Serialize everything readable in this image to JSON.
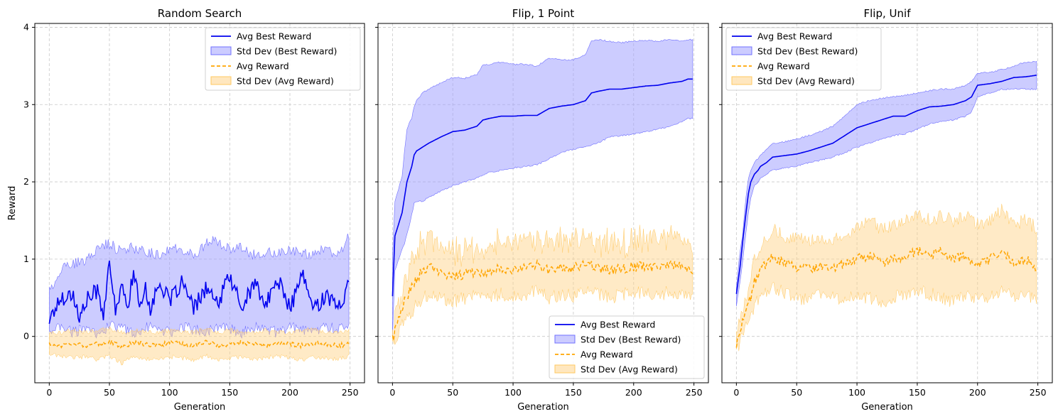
{
  "chart_data": [
    {
      "type": "line",
      "title": "Random Search",
      "xlabel": "Generation",
      "ylabel": "Reward",
      "xlim": [
        -12,
        262
      ],
      "ylim": [
        -0.6,
        4.05
      ],
      "xticks": [
        "0",
        "50",
        "100",
        "150",
        "200",
        "250"
      ],
      "yticks": [
        "0",
        "1",
        "2",
        "3",
        "4"
      ],
      "grid": true,
      "legend_position": "top-right",
      "colors": {
        "best": "#0000ee",
        "best_band": "#9999ff",
        "avg": "#ffa500",
        "avg_band": "#ffd080"
      },
      "series": [
        {
          "name": "Avg Best Reward",
          "style": "solid",
          "x": [
            0,
            10,
            20,
            25,
            30,
            40,
            45,
            50,
            55,
            60,
            65,
            70,
            75,
            80,
            85,
            90,
            100,
            110,
            120,
            130,
            140,
            150,
            160,
            170,
            180,
            190,
            200,
            210,
            220,
            230,
            240,
            249
          ],
          "y": [
            0.22,
            0.5,
            0.55,
            0.2,
            0.45,
            0.6,
            0.3,
            0.9,
            0.35,
            0.62,
            0.4,
            0.83,
            0.4,
            0.65,
            0.3,
            0.72,
            0.45,
            0.7,
            0.35,
            0.63,
            0.4,
            0.8,
            0.35,
            0.7,
            0.4,
            0.75,
            0.35,
            0.8,
            0.35,
            0.55,
            0.35,
            0.68
          ]
        },
        {
          "name": "Std Dev (Best Reward)",
          "kind": "band",
          "x": [
            0,
            10,
            20,
            30,
            40,
            50,
            60,
            70,
            80,
            90,
            100,
            110,
            120,
            130,
            140,
            150,
            160,
            170,
            180,
            190,
            200,
            210,
            220,
            230,
            240,
            249
          ],
          "lower": [
            0.05,
            0.15,
            0.05,
            0.1,
            0.0,
            0.15,
            0.1,
            0.05,
            0.12,
            0.1,
            0.05,
            0.12,
            0.1,
            0.05,
            0.12,
            0.1,
            0.05,
            0.12,
            0.1,
            0.05,
            0.12,
            0.1,
            0.05,
            0.12,
            0.1,
            0.1
          ],
          "upper": [
            0.6,
            0.88,
            0.95,
            0.95,
            1.15,
            1.2,
            1.1,
            1.15,
            1.1,
            1.05,
            1.15,
            1.1,
            1.05,
            1.2,
            1.25,
            1.1,
            1.15,
            1.05,
            1.1,
            1.05,
            1.15,
            1.05,
            1.1,
            1.1,
            1.05,
            1.28
          ]
        },
        {
          "name": "Avg Reward",
          "style": "dashed",
          "x": [
            0,
            10,
            20,
            30,
            40,
            50,
            60,
            70,
            80,
            90,
            100,
            110,
            120,
            130,
            140,
            150,
            160,
            170,
            180,
            190,
            200,
            210,
            220,
            230,
            240,
            249
          ],
          "y": [
            -0.1,
            -0.12,
            -0.08,
            -0.12,
            -0.1,
            -0.06,
            -0.14,
            -0.08,
            -0.1,
            -0.12,
            -0.08,
            -0.1,
            -0.12,
            -0.06,
            -0.12,
            -0.1,
            -0.08,
            -0.1,
            -0.12,
            -0.08,
            -0.1,
            -0.12,
            -0.08,
            -0.1,
            -0.12,
            -0.1
          ]
        },
        {
          "name": "Std Dev (Avg Reward)",
          "kind": "band",
          "x": [
            0,
            10,
            20,
            30,
            40,
            50,
            60,
            70,
            80,
            90,
            100,
            110,
            120,
            130,
            140,
            150,
            160,
            170,
            180,
            190,
            200,
            210,
            220,
            230,
            240,
            249
          ],
          "lower": [
            -0.22,
            -0.25,
            -0.28,
            -0.26,
            -0.3,
            -0.25,
            -0.35,
            -0.25,
            -0.3,
            -0.28,
            -0.26,
            -0.28,
            -0.3,
            -0.25,
            -0.3,
            -0.28,
            -0.26,
            -0.3,
            -0.28,
            -0.25,
            -0.28,
            -0.3,
            -0.26,
            -0.28,
            -0.3,
            -0.25
          ],
          "upper": [
            0.05,
            0.05,
            0.08,
            0.05,
            0.08,
            0.1,
            0.05,
            0.08,
            0.06,
            0.05,
            0.08,
            0.06,
            0.05,
            0.1,
            0.05,
            0.08,
            0.06,
            0.05,
            0.08,
            0.06,
            0.05,
            0.08,
            0.1,
            0.06,
            0.05,
            0.08
          ]
        }
      ]
    },
    {
      "type": "line",
      "title": "Flip, 1 Point",
      "xlabel": "Generation",
      "ylabel": "",
      "xlim": [
        -12,
        262
      ],
      "ylim": [
        -0.6,
        4.05
      ],
      "xticks": [
        "0",
        "50",
        "100",
        "150",
        "200",
        "250"
      ],
      "yticks": [
        "0",
        "1",
        "2",
        "3",
        "4"
      ],
      "grid": true,
      "legend_position": "bottom-right",
      "colors": {
        "best": "#0000ee",
        "best_band": "#9999ff",
        "avg": "#ffa500",
        "avg_band": "#ffd080"
      },
      "series": [
        {
          "name": "Avg Best Reward",
          "style": "solid",
          "x": [
            0,
            2,
            5,
            8,
            10,
            12,
            14,
            16,
            18,
            20,
            25,
            30,
            40,
            50,
            60,
            70,
            75,
            80,
            90,
            100,
            110,
            120,
            130,
            140,
            150,
            160,
            165,
            170,
            180,
            190,
            200,
            210,
            220,
            230,
            240,
            245,
            249
          ],
          "y": [
            0.52,
            1.3,
            1.45,
            1.6,
            1.8,
            2.0,
            2.1,
            2.2,
            2.35,
            2.4,
            2.45,
            2.5,
            2.58,
            2.65,
            2.67,
            2.72,
            2.8,
            2.82,
            2.85,
            2.85,
            2.86,
            2.86,
            2.95,
            2.98,
            3.0,
            3.05,
            3.15,
            3.17,
            3.2,
            3.2,
            3.22,
            3.24,
            3.25,
            3.28,
            3.3,
            3.33,
            3.33
          ]
        },
        {
          "name": "Std Dev (Best Reward)",
          "kind": "band",
          "x": [
            0,
            2,
            5,
            10,
            15,
            18,
            20,
            25,
            30,
            40,
            50,
            60,
            70,
            80,
            90,
            100,
            110,
            120,
            130,
            140,
            150,
            160,
            170,
            180,
            190,
            200,
            210,
            220,
            230,
            240,
            245,
            249
          ],
          "lower": [
            0.0,
            0.85,
            1.0,
            1.2,
            1.5,
            1.72,
            1.75,
            1.75,
            1.8,
            1.88,
            1.95,
            2.0,
            2.05,
            2.12,
            2.15,
            2.18,
            2.2,
            2.22,
            2.3,
            2.38,
            2.42,
            2.45,
            2.5,
            2.58,
            2.6,
            2.62,
            2.65,
            2.68,
            2.72,
            2.78,
            2.82,
            2.82
          ]
        },
        {
          "name": "Avg Reward",
          "style": "dashed",
          "x": [
            0,
            5,
            10,
            15,
            20,
            25,
            30,
            40,
            50,
            60,
            70,
            80,
            90,
            100,
            110,
            120,
            130,
            140,
            150,
            160,
            170,
            180,
            190,
            200,
            210,
            220,
            230,
            240,
            249
          ],
          "y": [
            -0.05,
            0.25,
            0.45,
            0.6,
            0.75,
            0.85,
            0.9,
            0.82,
            0.78,
            0.8,
            0.85,
            0.82,
            0.9,
            0.85,
            0.88,
            0.92,
            0.85,
            0.9,
            0.88,
            0.95,
            0.9,
            0.85,
            0.88,
            0.9,
            0.92,
            0.88,
            0.95,
            0.9,
            0.82
          ]
        },
        {
          "name": "Std Dev (Avg Reward)",
          "kind": "band",
          "x": [
            0,
            5,
            10,
            15,
            20,
            25,
            30,
            40,
            50,
            60,
            70,
            80,
            90,
            100,
            110,
            120,
            130,
            140,
            150,
            160,
            170,
            180,
            190,
            200,
            210,
            220,
            230,
            240,
            249
          ],
          "lower": [
            -0.1,
            0.05,
            0.2,
            0.3,
            0.4,
            0.5,
            0.55,
            0.5,
            0.45,
            0.5,
            0.55,
            0.5,
            0.55,
            0.5,
            0.55,
            0.6,
            0.5,
            0.55,
            0.52,
            0.6,
            0.55,
            0.5,
            0.55,
            0.55,
            0.6,
            0.52,
            0.58,
            0.55,
            0.5
          ]
        }
      ]
    },
    {
      "type": "line",
      "title": "Flip, Unif",
      "xlabel": "Generation",
      "ylabel": "",
      "xlim": [
        -12,
        262
      ],
      "ylim": [
        -0.6,
        4.05
      ],
      "xticks": [
        "0",
        "50",
        "100",
        "150",
        "200",
        "250"
      ],
      "yticks": [
        "0",
        "1",
        "2",
        "3",
        "4"
      ],
      "grid": true,
      "legend_position": "top-left",
      "colors": {
        "best": "#0000ee",
        "best_band": "#9999ff",
        "avg": "#ffa500",
        "avg_band": "#ffd080"
      },
      "series": [
        {
          "name": "Avg Best Reward",
          "style": "solid",
          "x": [
            0,
            3,
            5,
            8,
            10,
            12,
            15,
            18,
            20,
            25,
            30,
            40,
            50,
            60,
            70,
            80,
            90,
            100,
            110,
            120,
            130,
            140,
            150,
            160,
            170,
            180,
            190,
            195,
            200,
            210,
            220,
            230,
            240,
            249
          ],
          "y": [
            0.55,
            0.9,
            1.2,
            1.6,
            1.85,
            2.0,
            2.1,
            2.15,
            2.2,
            2.25,
            2.32,
            2.34,
            2.36,
            2.4,
            2.45,
            2.5,
            2.6,
            2.7,
            2.75,
            2.8,
            2.85,
            2.85,
            2.92,
            2.97,
            2.98,
            3.0,
            3.05,
            3.1,
            3.25,
            3.27,
            3.3,
            3.35,
            3.36,
            3.38
          ]
        },
        {
          "name": "Std Dev (Best Reward)",
          "kind": "band",
          "x": [
            0,
            3,
            5,
            8,
            10,
            12,
            15,
            18,
            20,
            25,
            30,
            40,
            50,
            60,
            70,
            80,
            90,
            100,
            110,
            120,
            130,
            140,
            150,
            160,
            170,
            180,
            190,
            195,
            200,
            210,
            220,
            230,
            240,
            249
          ],
          "lower": [
            0.4,
            0.7,
            0.95,
            1.35,
            1.6,
            1.8,
            1.95,
            2.0,
            2.05,
            2.1,
            2.15,
            2.18,
            2.2,
            2.25,
            2.28,
            2.32,
            2.38,
            2.45,
            2.5,
            2.55,
            2.6,
            2.62,
            2.68,
            2.75,
            2.78,
            2.8,
            2.85,
            2.9,
            3.1,
            3.15,
            3.2,
            3.2,
            3.2,
            3.2
          ],
          "upper": [
            0.65,
            1.1,
            1.3,
            1.8,
            2.05,
            2.15,
            2.25,
            2.3,
            2.35,
            2.42,
            2.5,
            2.52,
            2.55,
            2.6,
            2.65,
            2.72,
            2.85,
            3.0,
            3.05,
            3.08,
            3.1,
            3.12,
            3.15,
            3.18,
            3.2,
            3.2,
            3.25,
            3.3,
            3.4,
            3.42,
            3.45,
            3.5,
            3.55,
            3.55
          ]
        },
        {
          "name": "Avg Reward",
          "style": "dashed",
          "x": [
            0,
            5,
            10,
            15,
            20,
            25,
            30,
            40,
            50,
            60,
            70,
            80,
            90,
            100,
            110,
            120,
            130,
            140,
            150,
            160,
            170,
            180,
            190,
            200,
            210,
            220,
            230,
            240,
            249
          ],
          "y": [
            -0.1,
            0.2,
            0.4,
            0.7,
            0.85,
            0.95,
            1.05,
            0.95,
            0.9,
            0.88,
            0.92,
            0.9,
            0.95,
            1.0,
            1.05,
            0.95,
            1.0,
            1.05,
            1.1,
            1.05,
            1.1,
            1.0,
            1.05,
            0.95,
            1.0,
            1.1,
            0.95,
            1.0,
            0.9
          ]
        },
        {
          "name": "Std Dev (Avg Reward)",
          "kind": "band",
          "x": [
            0,
            5,
            10,
            15,
            20,
            25,
            30,
            40,
            50,
            60,
            70,
            80,
            90,
            100,
            110,
            120,
            130,
            140,
            150,
            160,
            170,
            180,
            190,
            200,
            210,
            220,
            230,
            240,
            249
          ],
          "lower": [
            -0.2,
            0.05,
            0.2,
            0.4,
            0.5,
            0.6,
            0.65,
            0.55,
            0.5,
            0.45,
            0.55,
            0.5,
            0.5,
            0.55,
            0.5,
            0.45,
            0.5,
            0.55,
            0.6,
            0.55,
            0.5,
            0.45,
            0.55,
            0.5,
            0.5,
            0.6,
            0.5,
            0.55,
            0.45
          ],
          "upper": [
            0.0,
            0.35,
            0.6,
            1.0,
            1.15,
            1.25,
            1.4,
            1.3,
            1.25,
            1.25,
            1.3,
            1.25,
            1.35,
            1.4,
            1.5,
            1.4,
            1.45,
            1.5,
            1.6,
            1.5,
            1.55,
            1.5,
            1.55,
            1.45,
            1.5,
            1.65,
            1.45,
            1.5,
            1.4
          ]
        }
      ]
    }
  ]
}
